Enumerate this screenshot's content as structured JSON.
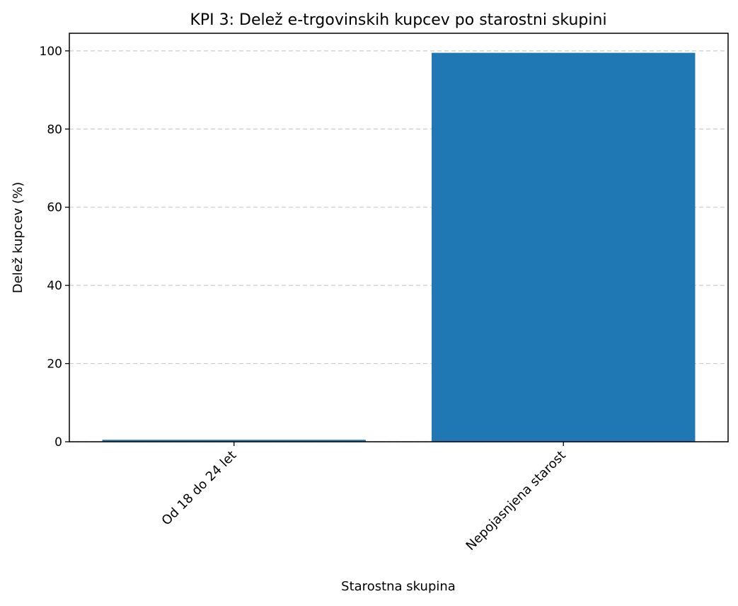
{
  "chart_data": {
    "type": "bar",
    "title": "KPI 3: Delež e-trgovinskih kupcev po starostni skupini",
    "xlabel": "Starostna skupina",
    "ylabel": "Delež kupcev (%)",
    "categories": [
      "Od 18 do 24 let",
      "Nepojasnjena starost"
    ],
    "values": [
      0.5,
      99.5
    ],
    "ylim": [
      0,
      104.5
    ],
    "yticks": [
      0,
      20,
      40,
      60,
      80,
      100
    ],
    "grid": "y-dashed",
    "legend": "none",
    "colors": {
      "bar": "#1f77b4",
      "grid": "#cccccc",
      "axis": "#000000"
    }
  }
}
